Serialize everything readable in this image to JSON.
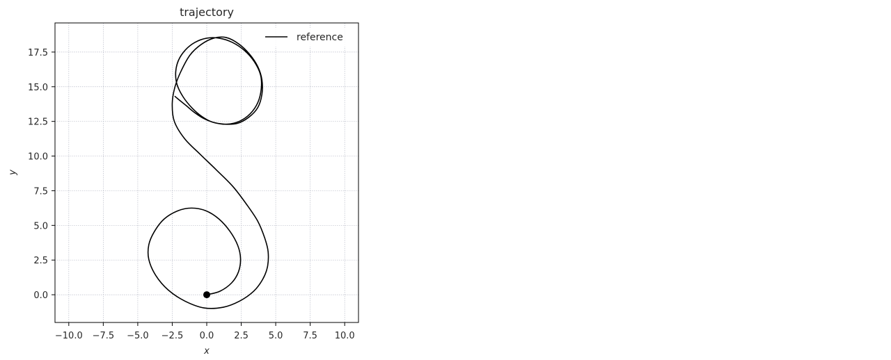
{
  "chart_data": {
    "type": "line",
    "title": "trajectory",
    "xlabel": "x",
    "ylabel": "y",
    "xlim": [
      -11.0,
      11.0
    ],
    "ylim": [
      -2.0,
      19.6
    ],
    "xticks": [
      -10.0,
      -7.5,
      -5.0,
      -2.5,
      0.0,
      2.5,
      5.0,
      7.5,
      10.0
    ],
    "xtick_labels": [
      "−10.0",
      "−7.5",
      "−5.0",
      "−2.5",
      "0.0",
      "2.5",
      "5.0",
      "7.5",
      "10.0"
    ],
    "yticks": [
      0.0,
      2.5,
      5.0,
      7.5,
      10.0,
      12.5,
      15.0,
      17.5
    ],
    "ytick_labels": [
      "0.0",
      "2.5",
      "5.0",
      "7.5",
      "10.0",
      "12.5",
      "15.0",
      "17.5"
    ],
    "grid": true,
    "legend_position": "top-right",
    "series": [
      {
        "name": "reference",
        "color": "#000000",
        "x": [
          0.0,
          0.95,
          1.8,
          2.3,
          2.45,
          2.25,
          1.7,
          0.9,
          -0.05,
          -1.1,
          -2.1,
          -3.1,
          -3.8,
          -4.2,
          -4.2,
          -3.7,
          -2.8,
          -1.6,
          -0.2,
          1.2,
          2.4,
          3.4,
          4.05,
          4.4,
          4.45,
          4.2,
          3.7,
          2.9,
          1.9,
          0.7,
          -0.5,
          -1.6,
          -2.35,
          -2.5,
          -2.3,
          -1.85,
          -1.2,
          -0.4,
          0.5,
          1.4,
          2.3,
          3.1,
          3.7,
          4.0,
          4.0,
          3.7,
          3.05,
          2.2,
          1.3,
          0.4,
          -0.35,
          -1.05,
          -1.7,
          -2.15,
          -2.25,
          -2.05,
          -1.55,
          -0.85,
          0.0,
          0.9,
          1.85,
          2.75,
          3.45,
          3.9,
          3.95,
          3.7,
          3.15,
          2.35,
          1.45,
          0.6,
          -0.2,
          -0.9,
          -1.5,
          -2.0,
          -2.3
        ],
        "y": [
          0.0,
          0.25,
          0.85,
          1.65,
          2.6,
          3.55,
          4.55,
          5.45,
          6.05,
          6.25,
          6.05,
          5.45,
          4.55,
          3.6,
          2.55,
          1.4,
          0.35,
          -0.45,
          -0.95,
          -0.9,
          -0.45,
          0.25,
          1.1,
          2.0,
          3.1,
          4.1,
          5.3,
          6.5,
          7.8,
          9.0,
          10.15,
          11.25,
          12.5,
          13.8,
          15.0,
          16.15,
          17.3,
          18.05,
          18.5,
          18.55,
          18.1,
          17.35,
          16.45,
          15.5,
          14.45,
          13.5,
          12.8,
          12.35,
          12.3,
          12.45,
          12.85,
          13.45,
          14.25,
          15.15,
          16.05,
          16.9,
          17.65,
          18.2,
          18.5,
          18.5,
          18.2,
          17.6,
          16.8,
          15.85,
          14.85,
          13.85,
          13.05,
          12.5,
          12.3,
          12.4,
          12.7,
          13.15,
          13.65,
          14.05,
          14.3
        ]
      }
    ],
    "markers": [
      {
        "x": 0.0,
        "y": 0.0,
        "color": "#000000"
      }
    ]
  }
}
